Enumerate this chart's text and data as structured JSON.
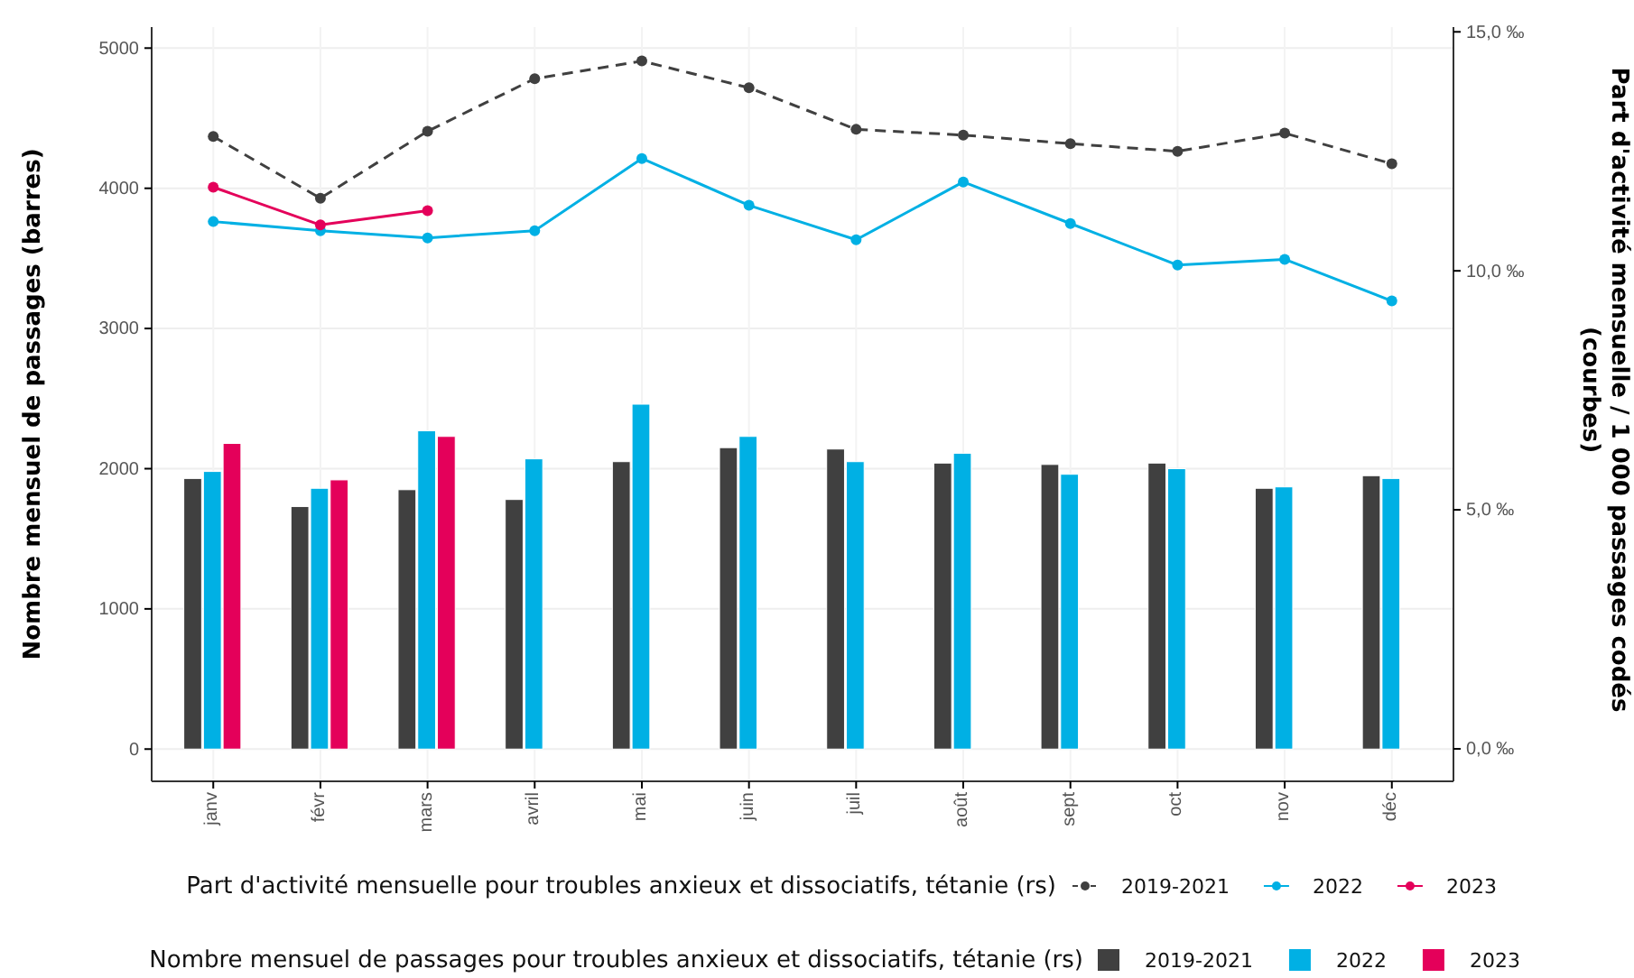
{
  "chart_data": {
    "type": "bar",
    "ylabel": "Nombre mensuel de passages (barres)",
    "y2label": "Part d'activité mensuelle / 1 000 passages codés (courbes)",
    "legend_title": [
      "Part d'activité mensuelle pour troubles anxieux et dissociatifs, tétanie (rs)",
      "Nombre mensuel de passages pour troubles anxieux et dissociatifs, tétanie (rs)"
    ],
    "categories": [
      "janv",
      "févr",
      "mars",
      "avril",
      "mai",
      "juin",
      "juil",
      "août",
      "sept",
      "oct",
      "nov",
      "déc"
    ],
    "ylim": [
      -230,
      5150
    ],
    "yticks": [
      0,
      1000,
      2000,
      3000,
      4000,
      5000
    ],
    "y2lim": [
      -0.68,
      15.1
    ],
    "y2ticks": [
      {
        "value": 0,
        "label": "0,0 ‰"
      },
      {
        "value": 5,
        "label": "5,0 ‰"
      },
      {
        "value": 10,
        "label": "10,0 ‰"
      },
      {
        "value": 15,
        "label": "15,0 ‰"
      }
    ],
    "grid": true,
    "legend": "bottom",
    "series": [
      {
        "name": "2019-2021",
        "type": "line",
        "axis": "y2",
        "color": "#404040",
        "marker": "circle",
        "line_style": "dashed",
        "values": [
          12.81,
          11.52,
          12.92,
          14.02,
          14.39,
          13.83,
          12.96,
          12.84,
          12.66,
          12.5,
          12.88,
          12.24
        ]
      },
      {
        "name": "2022",
        "type": "line",
        "axis": "y2",
        "color": "#00b0e4",
        "marker": "circle",
        "line_style": "solid",
        "values": [
          11.03,
          10.84,
          10.69,
          10.84,
          12.35,
          11.37,
          10.65,
          11.86,
          10.99,
          10.12,
          10.24,
          9.37
        ]
      },
      {
        "name": "2023",
        "type": "line",
        "axis": "y2",
        "color": "#e4005a",
        "marker": "circle",
        "line_style": "solid",
        "values": [
          11.75,
          10.96,
          11.26,
          null,
          null,
          null,
          null,
          null,
          null,
          null,
          null,
          null
        ]
      },
      {
        "name": "2019-2021",
        "color": "#404040",
        "values": [
          1930,
          1730,
          1850,
          1780,
          2050,
          2150,
          2140,
          2040,
          2030,
          2040,
          1860,
          1950
        ]
      },
      {
        "name": "2022",
        "color": "#00b0e4",
        "values": [
          1980,
          1860,
          2270,
          2070,
          2460,
          2230,
          2050,
          2110,
          1960,
          2000,
          1870,
          1930
        ]
      },
      {
        "name": "2023",
        "color": "#e4005a",
        "values": [
          2180,
          1920,
          2230,
          null,
          null,
          null,
          null,
          null,
          null,
          null,
          null,
          null
        ]
      }
    ]
  }
}
